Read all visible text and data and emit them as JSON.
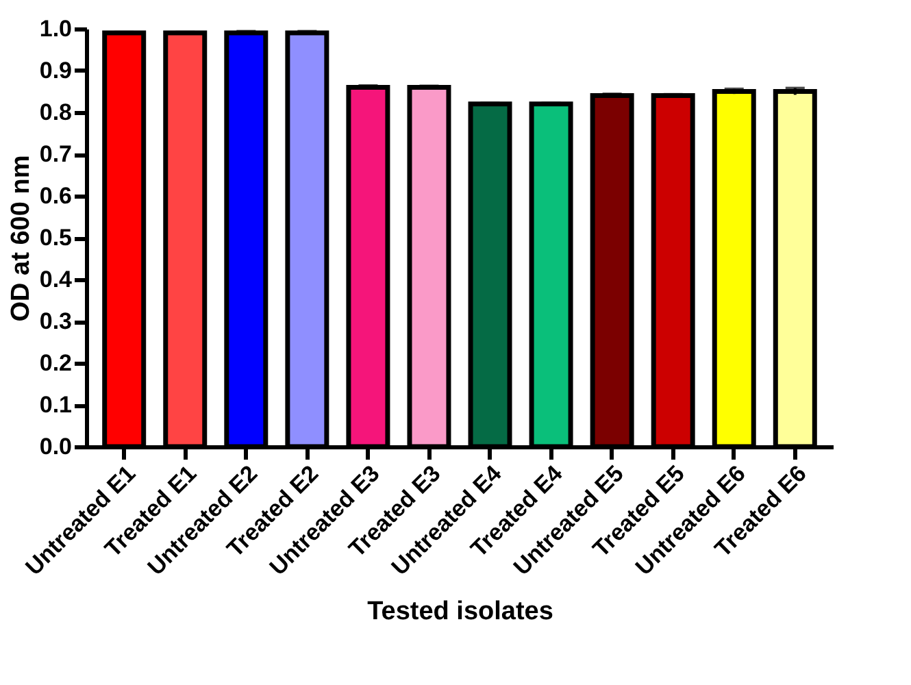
{
  "chart_data": {
    "type": "bar",
    "xlabel": "Tested isolates",
    "ylabel": "OD at 600 nm",
    "categories": [
      "Untreated E1",
      "Treated E1",
      "Untreated E2",
      "Treated E2",
      "Untreated E3",
      "Treated E3",
      "Untreated E4",
      "Treated E4",
      "Untreated E5",
      "Treated E5",
      "Untreated E6",
      "Treated E6"
    ],
    "values": [
      0.99,
      0.99,
      0.99,
      0.99,
      0.86,
      0.86,
      0.82,
      0.82,
      0.84,
      0.84,
      0.85,
      0.85
    ],
    "errors": [
      0.002,
      0.002,
      0.004,
      0.004,
      0.004,
      0.003,
      0.002,
      0.002,
      0.004,
      0.003,
      0.006,
      0.008
    ],
    "colors": [
      "#ff0000",
      "#ff4444",
      "#0000ff",
      "#8f8fff",
      "#f5157a",
      "#fa9ac8",
      "#056b45",
      "#0abf7a",
      "#7b0000",
      "#cc0000",
      "#ffff00",
      "#ffff99"
    ],
    "ylim": [
      0,
      1.0
    ],
    "yticks": [
      {
        "value": 0,
        "label": "0.0"
      },
      0.1,
      0.2,
      0.3,
      0.4,
      0.5,
      0.6,
      0.7,
      0.8,
      0.9,
      {
        "value": 1.0,
        "label": "1.0"
      }
    ],
    "grid": false
  }
}
